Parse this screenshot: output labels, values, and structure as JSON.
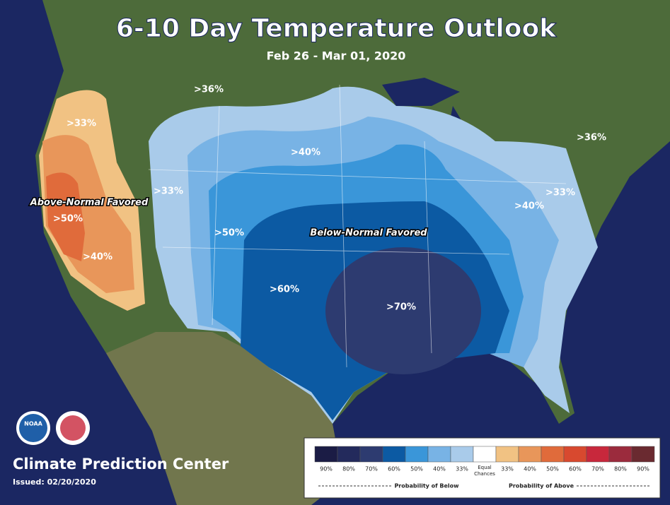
{
  "title": "6-10 Day Temperature Outlook",
  "subtitle": "Feb 26 - Mar 01, 2020",
  "map_labels": [
    ">36%",
    ">33%",
    ">40%",
    ">33%",
    ">50%",
    ">50%",
    ">40%",
    ">60%",
    ">70%",
    ">40%",
    ">33%",
    ">36%"
  ],
  "region_labels": [
    "Above-Normal Favored",
    "Below-Normal Favored"
  ],
  "logo": "NOAA",
  "footer": {
    "org": "Climate Prediction Center",
    "issued": "Issued: 02/20/2020"
  },
  "legend": {
    "below": {
      "labels": [
        "90%",
        "80%",
        "70%",
        "60%",
        "50%",
        "40%",
        "33%"
      ],
      "colors": [
        "#1b1c45",
        "#232a5c",
        "#2d3b70",
        "#0c5aa3",
        "#3a96d9",
        "#78b3e5",
        "#a9cbea"
      ],
      "caption": "Probability of Below"
    },
    "equal": {
      "lines": [
        "Equal",
        "Chances"
      ],
      "color": "#ffffff"
    },
    "above": {
      "labels": [
        "33%",
        "40%",
        "50%",
        "60%",
        "70%",
        "80%",
        "90%"
      ],
      "colors": [
        "#f1c283",
        "#e8965a",
        "#e06b3b",
        "#d8492f",
        "#c8283c",
        "#9b2b3d",
        "#6a2a30"
      ],
      "caption": "Probability of Above"
    }
  }
}
